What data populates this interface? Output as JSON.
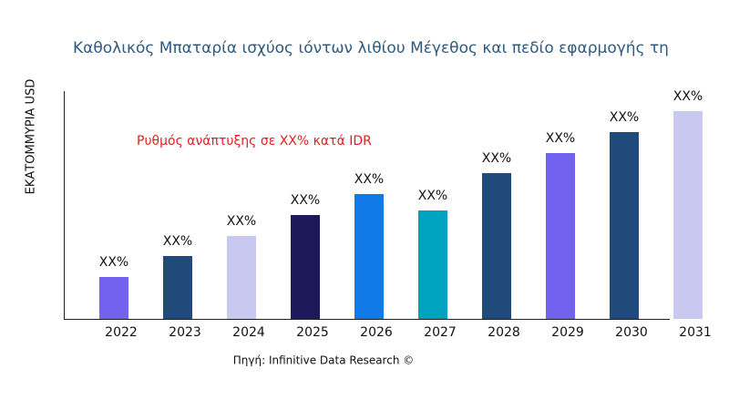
{
  "chart_data": {
    "type": "bar",
    "title": "Καθολικός Μπαταρία ισχύος ιόντων λιθίου Μέγεθος και πεδίο εφαρμογής τη",
    "y_label": "ΕΚΑΤΟΜΜΥΡΙΑ USD",
    "annotation": "Ρυθμός ανάπτυξης σε XX% κατά IDR",
    "source": "Πηγή: Infinitive Data Research ©",
    "categories": [
      "2022",
      "2023",
      "2024",
      "2025",
      "2026",
      "2027",
      "2028",
      "2029",
      "2030",
      "2031"
    ],
    "values": [
      46,
      69,
      91,
      114,
      137,
      119,
      160,
      182,
      205,
      228
    ],
    "value_labels": [
      "XX%",
      "XX%",
      "XX%",
      "XX%",
      "XX%",
      "XX%",
      "XX%",
      "XX%",
      "XX%",
      "XX%"
    ],
    "colors": [
      "#7262f0",
      "#1f4a7a",
      "#c8c8f0",
      "#1e1a5a",
      "#0f7ae8",
      "#00a3bf",
      "#1f4a7a",
      "#7262f0",
      "#1f4a7a",
      "#c8c8f0"
    ],
    "ylim": [
      0,
      250
    ]
  }
}
